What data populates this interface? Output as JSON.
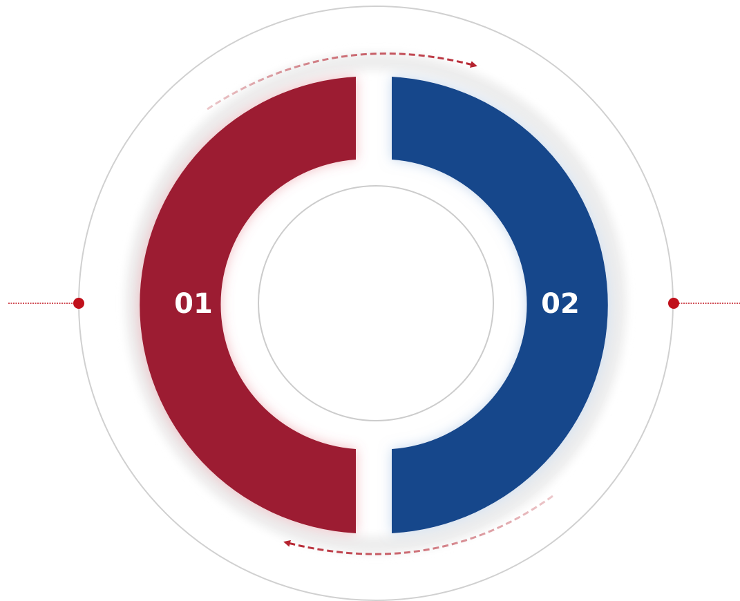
{
  "segments": [
    {
      "label": "01",
      "color": "#9c1f32"
    },
    {
      "label": "02",
      "color": "#17478b"
    }
  ],
  "accent_color": "#c0101b",
  "arrow_color": "#b5232f",
  "outer_ring_color": "#d0d0d0",
  "inner_ring_color": "#cccccc"
}
